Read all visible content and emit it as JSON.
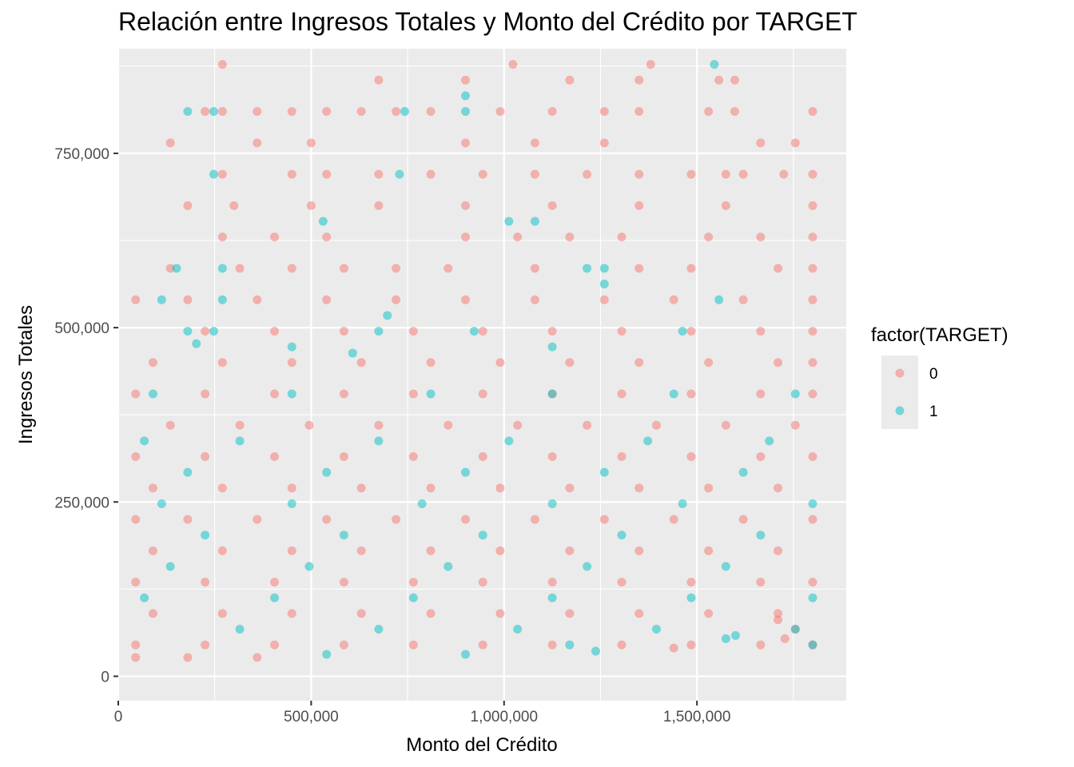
{
  "chart_data": {
    "type": "scatter",
    "title": "Relación entre Ingresos Totales y Monto del Crédito por TARGET",
    "xlabel": "Monto del Crédito",
    "ylabel": "Ingresos Totales",
    "xlim": [
      0,
      1887000
    ],
    "ylim": [
      -35000,
      900000
    ],
    "x_ticks": [
      0,
      500000,
      1000000,
      1500000
    ],
    "x_tick_labels": [
      "0",
      "500,000",
      "1,000,000",
      "1,500,000"
    ],
    "y_ticks": [
      0,
      250000,
      500000,
      750000
    ],
    "y_tick_labels": [
      "0",
      "250,000",
      "500,000",
      "750,000"
    ],
    "grid": true,
    "legend": {
      "title": "factor(TARGET)",
      "placement": "right",
      "items": [
        {
          "label": "0",
          "color": "#F8766D"
        },
        {
          "label": "1",
          "color": "#00BFC4"
        }
      ]
    },
    "series": [
      {
        "name": "0",
        "color": "#F8766D",
        "points": [
          [
            45000,
            540000
          ],
          [
            270000,
            877500
          ],
          [
            1023000,
            877500
          ],
          [
            1380000,
            877500
          ],
          [
            900000,
            855000
          ],
          [
            675000,
            855000
          ],
          [
            1170000,
            855000
          ],
          [
            1350000,
            855000
          ],
          [
            1557000,
            855000
          ],
          [
            1598000,
            855000
          ],
          [
            225000,
            810000
          ],
          [
            270000,
            810000
          ],
          [
            360000,
            810000
          ],
          [
            450000,
            810000
          ],
          [
            540000,
            810000
          ],
          [
            630000,
            810000
          ],
          [
            720000,
            810000
          ],
          [
            810000,
            810000
          ],
          [
            990000,
            810000
          ],
          [
            1125000,
            810000
          ],
          [
            1260000,
            810000
          ],
          [
            1350000,
            810000
          ],
          [
            1530000,
            810000
          ],
          [
            1598000,
            810000
          ],
          [
            1800000,
            810000
          ],
          [
            1665000,
            765000
          ],
          [
            1755000,
            765000
          ],
          [
            1260000,
            765000
          ],
          [
            1080000,
            765000
          ],
          [
            900000,
            765000
          ],
          [
            500000,
            765000
          ],
          [
            135000,
            765000
          ],
          [
            360000,
            765000
          ],
          [
            270000,
            720000
          ],
          [
            450000,
            720000
          ],
          [
            540000,
            720000
          ],
          [
            675000,
            720000
          ],
          [
            810000,
            720000
          ],
          [
            945000,
            720000
          ],
          [
            1080000,
            720000
          ],
          [
            1215000,
            720000
          ],
          [
            1350000,
            720000
          ],
          [
            1485000,
            720000
          ],
          [
            1620000,
            720000
          ],
          [
            1800000,
            720000
          ],
          [
            1725000,
            720000
          ],
          [
            1575000,
            720000
          ],
          [
            180000,
            675000
          ],
          [
            300000,
            675000
          ],
          [
            500000,
            675000
          ],
          [
            675000,
            675000
          ],
          [
            900000,
            675000
          ],
          [
            1125000,
            675000
          ],
          [
            1350000,
            675000
          ],
          [
            1575000,
            675000
          ],
          [
            1800000,
            675000
          ],
          [
            270000,
            630000
          ],
          [
            405000,
            630000
          ],
          [
            540000,
            630000
          ],
          [
            900000,
            630000
          ],
          [
            1035000,
            630000
          ],
          [
            1170000,
            630000
          ],
          [
            1305000,
            630000
          ],
          [
            1530000,
            630000
          ],
          [
            1800000,
            630000
          ],
          [
            1665000,
            630000
          ],
          [
            135000,
            585000
          ],
          [
            315000,
            585000
          ],
          [
            450000,
            585000
          ],
          [
            585000,
            585000
          ],
          [
            720000,
            585000
          ],
          [
            855000,
            585000
          ],
          [
            1080000,
            585000
          ],
          [
            1350000,
            585000
          ],
          [
            1485000,
            585000
          ],
          [
            1800000,
            585000
          ],
          [
            1710000,
            585000
          ],
          [
            180000,
            540000
          ],
          [
            360000,
            540000
          ],
          [
            540000,
            540000
          ],
          [
            720000,
            540000
          ],
          [
            900000,
            540000
          ],
          [
            1080000,
            540000
          ],
          [
            1260000,
            540000
          ],
          [
            1440000,
            540000
          ],
          [
            1620000,
            540000
          ],
          [
            1800000,
            540000
          ],
          [
            225000,
            495000
          ],
          [
            405000,
            495000
          ],
          [
            585000,
            495000
          ],
          [
            765000,
            495000
          ],
          [
            945000,
            495000
          ],
          [
            1125000,
            495000
          ],
          [
            1305000,
            495000
          ],
          [
            1485000,
            495000
          ],
          [
            1665000,
            495000
          ],
          [
            1800000,
            495000
          ],
          [
            90000,
            450000
          ],
          [
            270000,
            450000
          ],
          [
            450000,
            450000
          ],
          [
            630000,
            450000
          ],
          [
            810000,
            450000
          ],
          [
            990000,
            450000
          ],
          [
            1170000,
            450000
          ],
          [
            1350000,
            450000
          ],
          [
            1530000,
            450000
          ],
          [
            1710000,
            450000
          ],
          [
            1800000,
            450000
          ],
          [
            45000,
            405000
          ],
          [
            225000,
            405000
          ],
          [
            405000,
            405000
          ],
          [
            585000,
            405000
          ],
          [
            765000,
            405000
          ],
          [
            945000,
            405000
          ],
          [
            1125000,
            405000
          ],
          [
            1305000,
            405000
          ],
          [
            1485000,
            405000
          ],
          [
            1665000,
            405000
          ],
          [
            1800000,
            405000
          ],
          [
            135000,
            360000
          ],
          [
            315000,
            360000
          ],
          [
            495000,
            360000
          ],
          [
            675000,
            360000
          ],
          [
            855000,
            360000
          ],
          [
            1035000,
            360000
          ],
          [
            1215000,
            360000
          ],
          [
            1395000,
            360000
          ],
          [
            1575000,
            360000
          ],
          [
            1755000,
            360000
          ],
          [
            45000,
            315000
          ],
          [
            225000,
            315000
          ],
          [
            405000,
            315000
          ],
          [
            585000,
            315000
          ],
          [
            765000,
            315000
          ],
          [
            945000,
            315000
          ],
          [
            1125000,
            315000
          ],
          [
            1305000,
            315000
          ],
          [
            1485000,
            315000
          ],
          [
            1665000,
            315000
          ],
          [
            1800000,
            315000
          ],
          [
            90000,
            270000
          ],
          [
            270000,
            270000
          ],
          [
            450000,
            270000
          ],
          [
            630000,
            270000
          ],
          [
            810000,
            270000
          ],
          [
            990000,
            270000
          ],
          [
            1170000,
            270000
          ],
          [
            1350000,
            270000
          ],
          [
            1530000,
            270000
          ],
          [
            1710000,
            270000
          ],
          [
            45000,
            225000
          ],
          [
            180000,
            225000
          ],
          [
            360000,
            225000
          ],
          [
            540000,
            225000
          ],
          [
            720000,
            225000
          ],
          [
            900000,
            225000
          ],
          [
            1080000,
            225000
          ],
          [
            1260000,
            225000
          ],
          [
            1440000,
            225000
          ],
          [
            1620000,
            225000
          ],
          [
            1800000,
            225000
          ],
          [
            90000,
            180000
          ],
          [
            270000,
            180000
          ],
          [
            450000,
            180000
          ],
          [
            630000,
            180000
          ],
          [
            810000,
            180000
          ],
          [
            990000,
            180000
          ],
          [
            1170000,
            180000
          ],
          [
            1350000,
            180000
          ],
          [
            1530000,
            180000
          ],
          [
            1710000,
            180000
          ],
          [
            45000,
            135000
          ],
          [
            225000,
            135000
          ],
          [
            405000,
            135000
          ],
          [
            585000,
            135000
          ],
          [
            765000,
            135000
          ],
          [
            945000,
            135000
          ],
          [
            1125000,
            135000
          ],
          [
            1305000,
            135000
          ],
          [
            1485000,
            135000
          ],
          [
            1665000,
            135000
          ],
          [
            1800000,
            135000
          ],
          [
            90000,
            90000
          ],
          [
            270000,
            90000
          ],
          [
            450000,
            90000
          ],
          [
            630000,
            90000
          ],
          [
            810000,
            90000
          ],
          [
            990000,
            90000
          ],
          [
            1170000,
            90000
          ],
          [
            1350000,
            90000
          ],
          [
            1530000,
            90000
          ],
          [
            1710000,
            90000
          ],
          [
            45000,
            45000
          ],
          [
            225000,
            45000
          ],
          [
            405000,
            45000
          ],
          [
            585000,
            45000
          ],
          [
            765000,
            45000
          ],
          [
            945000,
            45000
          ],
          [
            1125000,
            45000
          ],
          [
            1305000,
            45000
          ],
          [
            1485000,
            45000
          ],
          [
            1665000,
            45000
          ],
          [
            1800000,
            45000
          ],
          [
            1728000,
            54000
          ],
          [
            1710000,
            81000
          ],
          [
            1755000,
            67500
          ],
          [
            1440000,
            40500
          ],
          [
            45000,
            27000
          ],
          [
            180000,
            27000
          ],
          [
            360000,
            27000
          ]
        ]
      },
      {
        "name": "1",
        "color": "#00BFC4",
        "points": [
          [
            1545000,
            877500
          ],
          [
            900000,
            832500
          ],
          [
            180000,
            810000
          ],
          [
            247500,
            810000
          ],
          [
            742500,
            810000
          ],
          [
            900000,
            810000
          ],
          [
            247500,
            720000
          ],
          [
            729000,
            720000
          ],
          [
            531000,
            652500
          ],
          [
            1012500,
            652500
          ],
          [
            1080000,
            652500
          ],
          [
            151200,
            585000
          ],
          [
            270000,
            585000
          ],
          [
            1215000,
            585000
          ],
          [
            1260000,
            585000
          ],
          [
            1260000,
            562500
          ],
          [
            112500,
            540000
          ],
          [
            270000,
            540000
          ],
          [
            1557000,
            540000
          ],
          [
            697500,
            517500
          ],
          [
            180000,
            495000
          ],
          [
            247500,
            495000
          ],
          [
            675000,
            495000
          ],
          [
            922500,
            495000
          ],
          [
            1462500,
            495000
          ],
          [
            202500,
            477000
          ],
          [
            450000,
            472500
          ],
          [
            1125000,
            472500
          ],
          [
            607500,
            463500
          ],
          [
            90000,
            405000
          ],
          [
            450000,
            405000
          ],
          [
            810000,
            405000
          ],
          [
            1125000,
            405000
          ],
          [
            1440000,
            405000
          ],
          [
            1755000,
            405000
          ],
          [
            67500,
            337500
          ],
          [
            315000,
            337500
          ],
          [
            675000,
            337500
          ],
          [
            1012500,
            337500
          ],
          [
            1372500,
            337500
          ],
          [
            1687500,
            337500
          ],
          [
            180000,
            292500
          ],
          [
            540000,
            292500
          ],
          [
            900000,
            292500
          ],
          [
            1260000,
            292500
          ],
          [
            1620000,
            292500
          ],
          [
            112500,
            247500
          ],
          [
            450000,
            247500
          ],
          [
            787500,
            247500
          ],
          [
            1125000,
            247500
          ],
          [
            1462500,
            247500
          ],
          [
            1800000,
            247500
          ],
          [
            225000,
            202500
          ],
          [
            585000,
            202500
          ],
          [
            945000,
            202500
          ],
          [
            1305000,
            202500
          ],
          [
            1665000,
            202500
          ],
          [
            135000,
            157500
          ],
          [
            495000,
            157500
          ],
          [
            855000,
            157500
          ],
          [
            1215000,
            157500
          ],
          [
            1575000,
            157500
          ],
          [
            67500,
            112500
          ],
          [
            405000,
            112500
          ],
          [
            765000,
            112500
          ],
          [
            1125000,
            112500
          ],
          [
            1485000,
            112500
          ],
          [
            1800000,
            112500
          ],
          [
            315000,
            67500
          ],
          [
            675000,
            67500
          ],
          [
            1035000,
            67500
          ],
          [
            1395000,
            67500
          ],
          [
            1755000,
            67500
          ],
          [
            1600000,
            58500
          ],
          [
            1237500,
            36000
          ],
          [
            1800000,
            45000
          ],
          [
            540000,
            31500
          ],
          [
            900000,
            31500
          ],
          [
            1170000,
            45000
          ],
          [
            1575000,
            54000
          ]
        ]
      }
    ]
  }
}
